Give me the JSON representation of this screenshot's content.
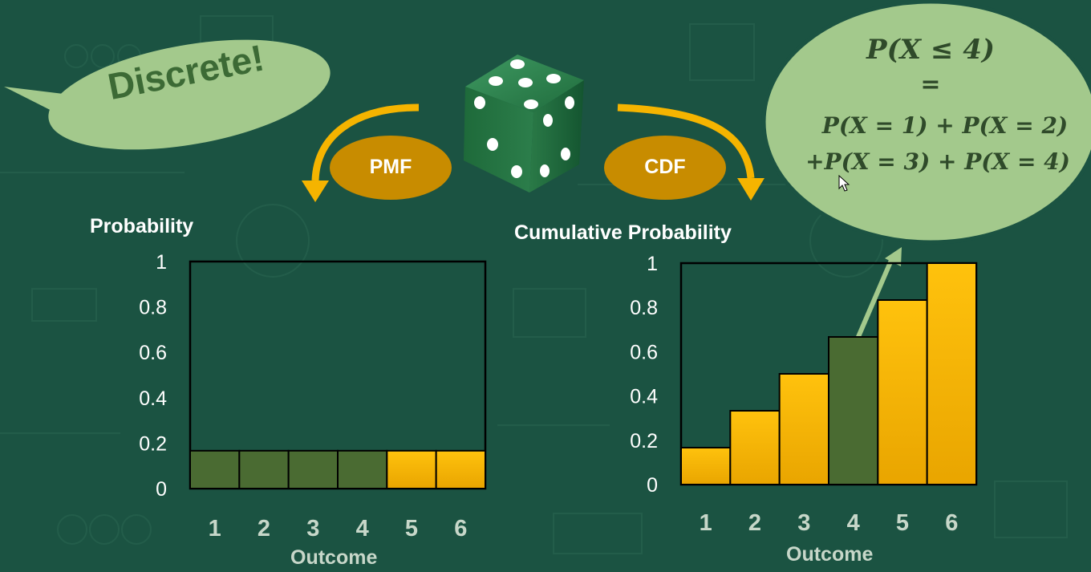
{
  "callout": {
    "text": "Discrete!"
  },
  "arrows": {
    "left_label": "PMF",
    "right_label": "CDF"
  },
  "formula_bubble": {
    "line1": "P(X ≤ 4)",
    "line2": "=",
    "line3": "P(X = 1) + P(X = 2)",
    "line4": "+P(X = 3) + P(X = 4)"
  },
  "colors": {
    "background": "#1b5342",
    "highlight_bar": "#4a6b32",
    "bar": "#f7b500",
    "arrow": "#f5b400",
    "pill": "#c88c00",
    "bubble": "#a3c98c"
  },
  "chart_data": [
    {
      "type": "bar",
      "ylabel": "Probability",
      "xlabel": "Outcome",
      "categories": [
        "1",
        "2",
        "3",
        "4",
        "5",
        "6"
      ],
      "values": [
        0.1667,
        0.1667,
        0.1667,
        0.1667,
        0.1667,
        0.1667
      ],
      "highlighted": [
        true,
        true,
        true,
        true,
        false,
        false
      ],
      "ylim": [
        0,
        1
      ],
      "yticks": [
        "0",
        "0.2",
        "0.4",
        "0.6",
        "0.8",
        "1"
      ]
    },
    {
      "type": "bar",
      "ylabel": "Cumulative Probability",
      "xlabel": "Outcome",
      "categories": [
        "1",
        "2",
        "3",
        "4",
        "5",
        "6"
      ],
      "values": [
        0.1667,
        0.3333,
        0.5,
        0.6667,
        0.8333,
        1.0
      ],
      "highlighted": [
        false,
        false,
        false,
        true,
        false,
        false
      ],
      "ylim": [
        0,
        1
      ],
      "yticks": [
        "0",
        "0.2",
        "0.4",
        "0.6",
        "0.8",
        "1"
      ]
    }
  ]
}
